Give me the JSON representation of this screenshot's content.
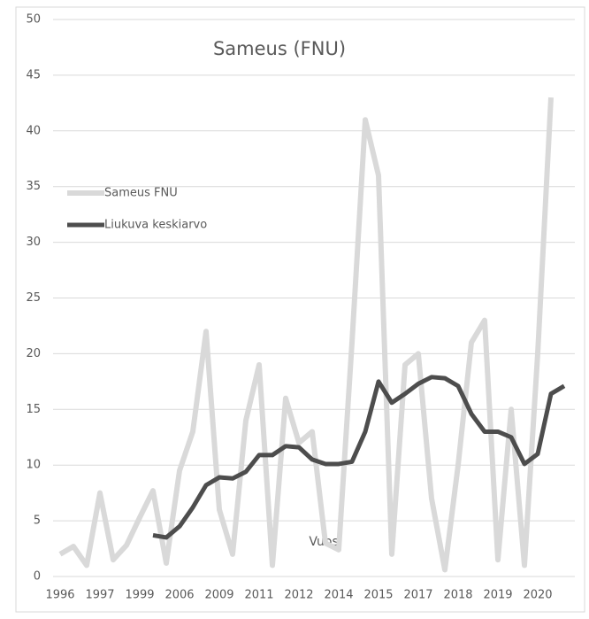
{
  "chart_data": {
    "type": "line",
    "title": "Sameus (FNU)",
    "annotation": "Vuosi",
    "categories": [
      "1996",
      null,
      null,
      "1997",
      null,
      null,
      "1999",
      null,
      null,
      "2006",
      null,
      null,
      "2009",
      null,
      null,
      "2011",
      null,
      null,
      "2012",
      null,
      null,
      "2014",
      null,
      null,
      "2015",
      null,
      null,
      "2017",
      null,
      null,
      "2018",
      null,
      null,
      "2019",
      null,
      null,
      "2020",
      null,
      null
    ],
    "series": [
      {
        "name": "Sameus FNU",
        "color": "#d9d9d9",
        "values": [
          2,
          2.7,
          1,
          7.5,
          1.5,
          2.8,
          5.3,
          7.7,
          1.2,
          9.5,
          13,
          22,
          6,
          2,
          14,
          19,
          1,
          16,
          12,
          13,
          3,
          2.4,
          21,
          41,
          36,
          2,
          19,
          20,
          7,
          0.6,
          10,
          21,
          23,
          1.5,
          15,
          1,
          20,
          43,
          null
        ]
      },
      {
        "name": "Liukuva keskiarvo",
        "color": "#4d4d4d",
        "values": [
          null,
          null,
          null,
          null,
          null,
          null,
          null,
          3.7,
          3.5,
          4.5,
          6.2,
          8.2,
          8.9,
          8.8,
          9.4,
          10.9,
          10.9,
          11.7,
          11.6,
          10.5,
          10.1,
          10.1,
          10.3,
          13,
          17.5,
          15.6,
          16.4,
          17.3,
          17.9,
          17.8,
          17.1,
          14.6,
          13,
          13,
          12.5,
          10.1,
          11,
          16.4,
          17.1
        ]
      }
    ],
    "ylim": [
      0,
      50
    ],
    "yticks": [
      0,
      5,
      10,
      15,
      20,
      25,
      30,
      35,
      40,
      45,
      50
    ],
    "grid": true
  }
}
